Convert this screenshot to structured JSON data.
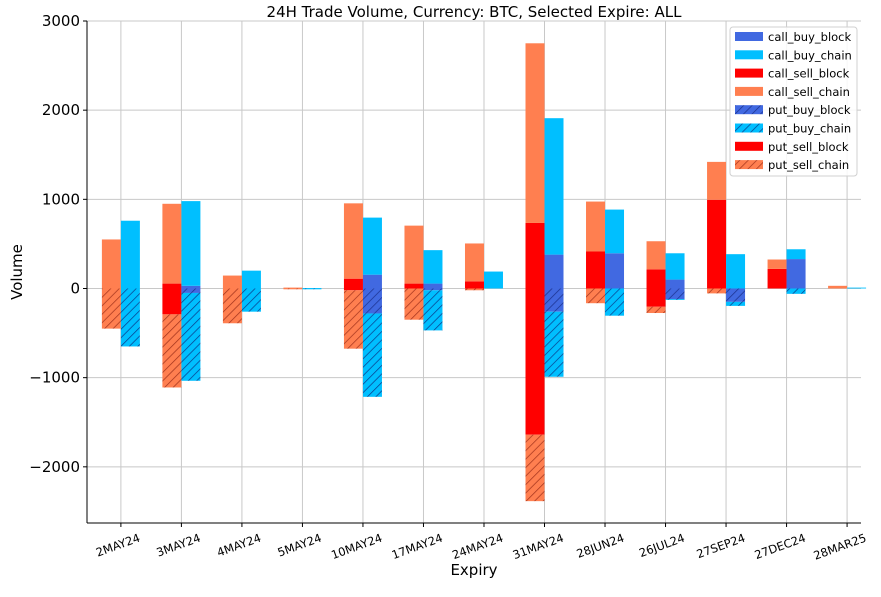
{
  "chart_data": {
    "type": "bar",
    "stacked": true,
    "title": "24H Trade Volume, Currency: BTC, Selected Expire: ALL",
    "xlabel": "Expiry",
    "ylabel": "Volume",
    "ylim": [
      -2630,
      3000
    ],
    "yticks": [
      -2000,
      -1000,
      0,
      1000,
      2000,
      3000
    ],
    "ytick_labels": [
      "−2000",
      "−1000",
      "0",
      "1000",
      "2000",
      "3000"
    ],
    "grid": true,
    "legend_placement": "top-right",
    "categories": [
      "2MAY24",
      "3MAY24",
      "4MAY24",
      "5MAY24",
      "10MAY24",
      "17MAY24",
      "24MAY24",
      "31MAY24",
      "28JUN24",
      "26JUL24",
      "27SEP24",
      "27DEC24",
      "28MAR25"
    ],
    "series": [
      {
        "name": "call_buy_block",
        "color": "#4169e1",
        "hatch": false,
        "group": "buy",
        "values": [
          0,
          30,
          0,
          0,
          155,
          55,
          0,
          380,
          395,
          100,
          0,
          330,
          0
        ]
      },
      {
        "name": "call_buy_chain",
        "color": "#00bfff",
        "hatch": false,
        "group": "buy",
        "values": [
          760,
          950,
          200,
          5,
          640,
          375,
          190,
          1530,
          490,
          295,
          385,
          110,
          10
        ]
      },
      {
        "name": "call_sell_block",
        "color": "#ff0000",
        "hatch": false,
        "group": "sell",
        "values": [
          0,
          55,
          0,
          0,
          110,
          55,
          80,
          735,
          415,
          215,
          995,
          220,
          0
        ]
      },
      {
        "name": "call_sell_chain",
        "color": "#ff7f50",
        "hatch": false,
        "group": "sell",
        "values": [
          550,
          895,
          145,
          10,
          845,
          650,
          425,
          2015,
          560,
          315,
          425,
          105,
          30
        ]
      },
      {
        "name": "put_buy_block",
        "color": "#4169e1",
        "hatch": true,
        "group": "buy",
        "values": [
          0,
          -50,
          0,
          0,
          -280,
          -20,
          0,
          -260,
          0,
          -120,
          -150,
          0,
          0
        ]
      },
      {
        "name": "put_buy_chain",
        "color": "#00bfff",
        "hatch": true,
        "group": "buy",
        "values": [
          -650,
          -985,
          -260,
          -3,
          -935,
          -450,
          0,
          -730,
          -305,
          -5,
          -45,
          -60,
          0
        ]
      },
      {
        "name": "put_sell_block",
        "color": "#ff0000",
        "hatch": false,
        "group": "sell",
        "values": [
          0,
          -290,
          0,
          0,
          -20,
          0,
          0,
          -1640,
          0,
          -205,
          0,
          0,
          0
        ]
      },
      {
        "name": "put_sell_chain",
        "color": "#ff7f50",
        "hatch": true,
        "group": "sell",
        "values": [
          -450,
          -820,
          -390,
          -5,
          -655,
          -350,
          -20,
          -745,
          -165,
          -70,
          -55,
          0,
          0
        ]
      }
    ]
  }
}
